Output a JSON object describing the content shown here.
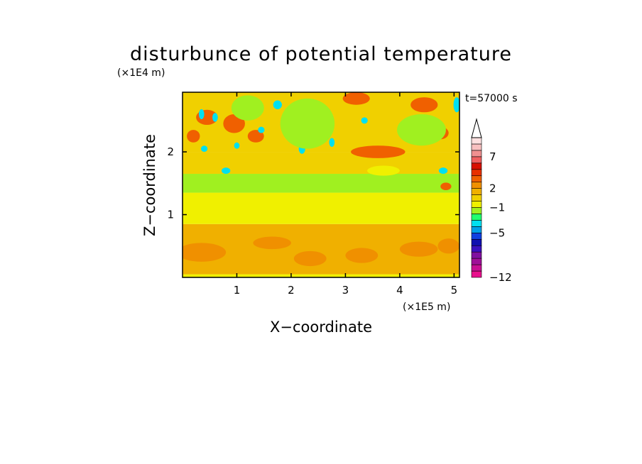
{
  "chart_data": {
    "type": "heatmap",
    "title": "disturbunce of potential temperature",
    "xlabel": "X−coordinate",
    "ylabel": "Z−coordinate",
    "x_unit": "(×1E5 m)",
    "y_unit": "(×1E4 m)",
    "time_label": "t=57000 s",
    "xlim": [
      0,
      5.1
    ],
    "ylim": [
      0,
      2.95
    ],
    "x_ticks": [
      1,
      2,
      3,
      4,
      5
    ],
    "y_ticks": [
      1,
      2
    ],
    "colorbar": {
      "levels": [
        -12,
        -11,
        -10,
        -9,
        -8,
        -7,
        -6,
        -5,
        -4,
        -3,
        -2,
        -1,
        0,
        1,
        2,
        3,
        4,
        5,
        6,
        7,
        8,
        9,
        10,
        11
      ],
      "tick_labels": [
        {
          "value": 7,
          "text": "7"
        },
        {
          "value": 2,
          "text": "2"
        },
        {
          "value": -1,
          "text": "−1"
        },
        {
          "value": -5,
          "text": "−5"
        },
        {
          "value": -12,
          "text": "−12"
        }
      ],
      "colors": [
        "#e8108c",
        "#c81094",
        "#a01098",
        "#8010a0",
        "#3a10c0",
        "#1010b0",
        "#1040e0",
        "#00a0e8",
        "#00e0f0",
        "#20ff70",
        "#a0f020",
        "#f0f000",
        "#f0d000",
        "#f0b000",
        "#f09000",
        "#f06000",
        "#e83000",
        "#d81000",
        "#f06060",
        "#f09090",
        "#f8c0c0",
        "#fde0e0"
      ],
      "extend": "max"
    },
    "bands": [
      {
        "z_from": 0.0,
        "z_to": 0.05,
        "value": -1
      },
      {
        "z_from": 0.05,
        "z_to": 0.85,
        "value": 1
      },
      {
        "z_from": 0.85,
        "z_to": 1.35,
        "value": -1
      },
      {
        "z_from": 1.35,
        "z_to": 1.65,
        "value": -1.5
      },
      {
        "z_from": 1.65,
        "z_to": 2.0,
        "value": 0
      },
      {
        "z_from": 2.0,
        "z_to": 2.95,
        "value": 0.5
      }
    ],
    "features": [
      {
        "x": 0.35,
        "z": 0.4,
        "rx": 0.45,
        "rz": 0.15,
        "value": 2
      },
      {
        "x": 1.65,
        "z": 0.55,
        "rx": 0.35,
        "rz": 0.1,
        "value": 2
      },
      {
        "x": 2.35,
        "z": 0.3,
        "rx": 0.3,
        "rz": 0.12,
        "value": 2
      },
      {
        "x": 3.3,
        "z": 0.35,
        "rx": 0.3,
        "rz": 0.12,
        "value": 2
      },
      {
        "x": 4.35,
        "z": 0.45,
        "rx": 0.35,
        "rz": 0.12,
        "value": 2
      },
      {
        "x": 4.9,
        "z": 0.5,
        "rx": 0.2,
        "rz": 0.12,
        "value": 2
      },
      {
        "x": 0.45,
        "z": 2.55,
        "rx": 0.2,
        "rz": 0.12,
        "value": 3
      },
      {
        "x": 0.2,
        "z": 2.25,
        "rx": 0.12,
        "rz": 0.1,
        "value": 3
      },
      {
        "x": 0.95,
        "z": 2.45,
        "rx": 0.2,
        "rz": 0.15,
        "value": 3
      },
      {
        "x": 1.35,
        "z": 2.25,
        "rx": 0.15,
        "rz": 0.1,
        "value": 3
      },
      {
        "x": 3.2,
        "z": 2.85,
        "rx": 0.25,
        "rz": 0.1,
        "value": 3
      },
      {
        "x": 3.6,
        "z": 2.0,
        "rx": 0.5,
        "rz": 0.1,
        "value": 3
      },
      {
        "x": 4.45,
        "z": 2.75,
        "rx": 0.25,
        "rz": 0.12,
        "value": 3
      },
      {
        "x": 4.75,
        "z": 2.3,
        "rx": 0.15,
        "rz": 0.1,
        "value": 3
      },
      {
        "x": 4.85,
        "z": 1.45,
        "rx": 0.1,
        "rz": 0.06,
        "value": 3
      },
      {
        "x": 0.35,
        "z": 2.6,
        "rx": 0.05,
        "rz": 0.08,
        "value": -4
      },
      {
        "x": 0.6,
        "z": 2.55,
        "rx": 0.05,
        "rz": 0.07,
        "value": -4
      },
      {
        "x": 0.4,
        "z": 2.05,
        "rx": 0.06,
        "rz": 0.05,
        "value": -4
      },
      {
        "x": 0.8,
        "z": 1.7,
        "rx": 0.08,
        "rz": 0.05,
        "value": -4
      },
      {
        "x": 1.0,
        "z": 2.1,
        "rx": 0.05,
        "rz": 0.05,
        "value": -4
      },
      {
        "x": 1.45,
        "z": 2.35,
        "rx": 0.06,
        "rz": 0.05,
        "value": -4
      },
      {
        "x": 1.75,
        "z": 2.75,
        "rx": 0.08,
        "rz": 0.07,
        "value": -4
      },
      {
        "x": 2.1,
        "z": 2.6,
        "rx": 0.06,
        "rz": 0.08,
        "value": -4
      },
      {
        "x": 2.2,
        "z": 2.05,
        "rx": 0.06,
        "rz": 0.08,
        "value": -4
      },
      {
        "x": 2.45,
        "z": 2.3,
        "rx": 0.05,
        "rz": 0.1,
        "value": -4
      },
      {
        "x": 2.6,
        "z": 2.55,
        "rx": 0.05,
        "rz": 0.08,
        "value": -4
      },
      {
        "x": 2.75,
        "z": 2.15,
        "rx": 0.05,
        "rz": 0.07,
        "value": -4
      },
      {
        "x": 3.35,
        "z": 2.5,
        "rx": 0.06,
        "rz": 0.05,
        "value": -4
      },
      {
        "x": 4.15,
        "z": 2.45,
        "rx": 0.06,
        "rz": 0.06,
        "value": -4
      },
      {
        "x": 4.8,
        "z": 1.7,
        "rx": 0.08,
        "rz": 0.05,
        "value": -4
      },
      {
        "x": 5.05,
        "z": 2.75,
        "rx": 0.06,
        "rz": 0.12,
        "value": -4
      },
      {
        "x": 2.3,
        "z": 2.45,
        "rx": 0.5,
        "rz": 0.4,
        "value": -1.5
      },
      {
        "x": 4.4,
        "z": 2.35,
        "rx": 0.45,
        "rz": 0.25,
        "value": -1.5
      },
      {
        "x": 1.2,
        "z": 2.7,
        "rx": 0.3,
        "rz": 0.2,
        "value": -1.5
      },
      {
        "x": 3.7,
        "z": 1.7,
        "rx": 0.3,
        "rz": 0.08,
        "value": -1
      }
    ]
  }
}
